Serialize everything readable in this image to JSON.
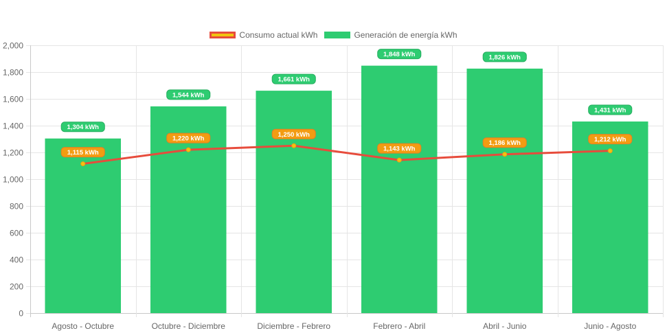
{
  "chart_data": {
    "type": "bar",
    "categories": [
      "Agosto - Octubre",
      "Octubre - Diciembre",
      "Diciembre - Febrero",
      "Febrero - Abril",
      "Abril - Junio",
      "Junio - Agosto"
    ],
    "series": [
      {
        "name": "Consumo actual kWh",
        "type": "line",
        "values": [
          1115,
          1220,
          1250,
          1143,
          1186,
          1212
        ],
        "labels": [
          "1,115 kWh",
          "1,220 kWh",
          "1,250 kWh",
          "1,143 kWh",
          "1,186 kWh",
          "1,212 kWh"
        ],
        "color": "#e74c3c",
        "fill": "#f1c40f",
        "label_bg": "#f39c12"
      },
      {
        "name": "Generación de energía kWh",
        "type": "bar",
        "values": [
          1304,
          1544,
          1661,
          1848,
          1826,
          1431
        ],
        "labels": [
          "1,304 kWh",
          "1,544 kWh",
          "1,661 kWh",
          "1,848 kWh",
          "1,826 kWh",
          "1,431 kWh"
        ],
        "color": "#2ecc71"
      }
    ],
    "ylim": [
      0,
      2000
    ],
    "yticks": [
      0,
      200,
      400,
      600,
      800,
      1000,
      1200,
      1400,
      1600,
      1800,
      2000
    ],
    "ytick_labels": [
      "0",
      "200",
      "400",
      "600",
      "800",
      "1,000",
      "1,200",
      "1,400",
      "1,600",
      "1,800",
      "2,000"
    ],
    "grid": true,
    "legend_position": "top-center"
  }
}
